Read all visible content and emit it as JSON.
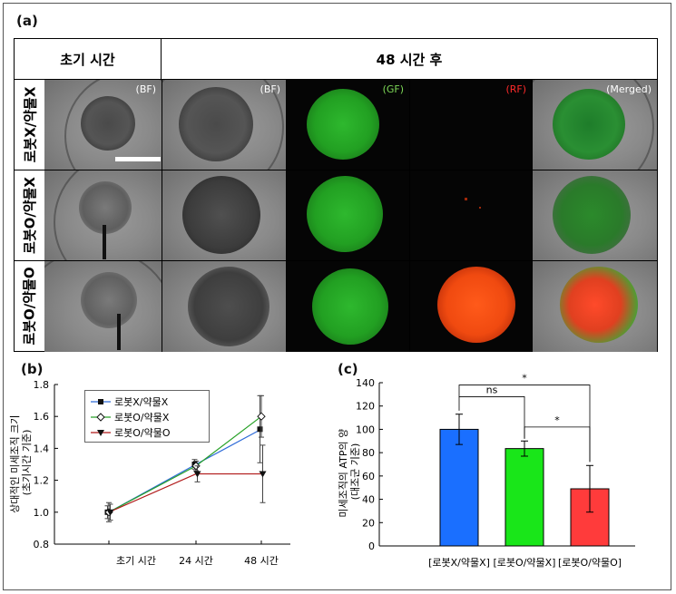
{
  "panels": {
    "a_label": "(a)",
    "b_label": "(b)",
    "c_label": "(c)"
  },
  "panel_a": {
    "header_initial": "초기 시간",
    "header_48h": "48 시간 후",
    "rows": [
      {
        "label": "로봇X/약물X"
      },
      {
        "label": "로봇O/약물X"
      },
      {
        "label": "로봇O/약물O"
      }
    ],
    "channel_tags": {
      "bf1": "(BF)",
      "bf2": "(BF)",
      "gf": "(GF)",
      "rf": "(RF)",
      "merged": "(Merged)"
    },
    "colors": {
      "gf": "#7ed957",
      "rf": "#ff2a2a",
      "tag_white": "#ffffff"
    }
  },
  "chart_data": [
    {
      "type": "line",
      "categories": [
        "초기 시간",
        "24 시간",
        "48 시간"
      ],
      "ylabel_line1": "상대적인 미세조직 크기",
      "ylabel_line2": "(초기시간 기준)",
      "ylim": [
        0.8,
        1.8
      ],
      "yticks": [
        "0.8",
        "1.0",
        "1.2",
        "1.4",
        "1.6",
        "1.8"
      ],
      "legend": "top-left",
      "series": [
        {
          "name": "로봇X/약물X",
          "color": "#2e6bd8",
          "marker": "square",
          "values": [
            1.0,
            1.3,
            1.52
          ],
          "err": [
            0.04,
            0.03,
            0.21
          ]
        },
        {
          "name": "로봇O/약물X",
          "color": "#27a127",
          "marker": "diamond",
          "values": [
            1.0,
            1.29,
            1.6
          ],
          "err": [
            0.06,
            0.03,
            0.13
          ]
        },
        {
          "name": "로봇O/약물O",
          "color": "#b01818",
          "marker": "triangle",
          "values": [
            1.0,
            1.24,
            1.24
          ],
          "err": [
            0.05,
            0.05,
            0.18
          ]
        }
      ]
    },
    {
      "type": "bar",
      "categories": [
        "[로봇X/약물X]",
        "[로봇O/약물X]",
        "[로봇O/약물O]"
      ],
      "values": [
        100,
        83.5,
        49
      ],
      "err": [
        13,
        6.5,
        20
      ],
      "colors": [
        "#1a6fff",
        "#19e619",
        "#ff3b3b"
      ],
      "ylabel_line1": "미세조직의 ATP의 양",
      "ylabel_line2": "(대조군 기준)",
      "ylim": [
        0,
        140
      ],
      "yticks": [
        "0",
        "20",
        "40",
        "60",
        "80",
        "100",
        "120",
        "140"
      ],
      "annotations": [
        {
          "label": "ns",
          "from": 0,
          "to": 1
        },
        {
          "label": "*",
          "from": 0,
          "to": 2
        },
        {
          "label": "*",
          "from": 1,
          "to": 2
        }
      ]
    }
  ]
}
